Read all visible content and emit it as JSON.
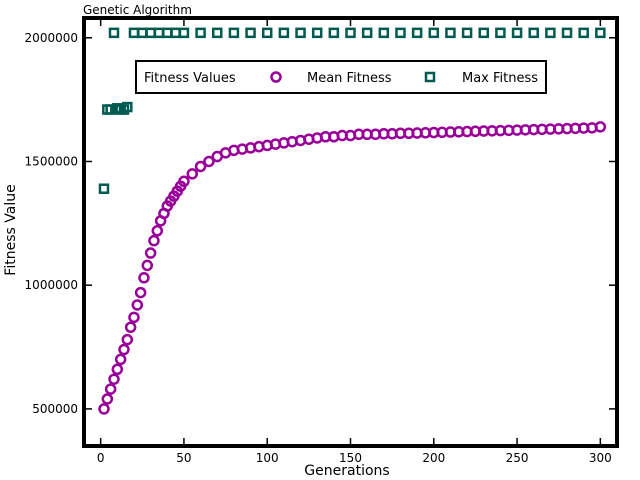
{
  "chart_data": {
    "type": "scatter",
    "title": "Genetic Algorithm",
    "xlabel": "Generations",
    "ylabel": "Fitness Value",
    "xlim": [
      -10,
      310
    ],
    "ylim": [
      350000,
      2080000
    ],
    "xticks": [
      0,
      50,
      100,
      150,
      200,
      250,
      300
    ],
    "yticks": [
      500000,
      1000000,
      1500000,
      2000000
    ],
    "xtick_labels": [
      "0",
      "50",
      "100",
      "150",
      "200",
      "250",
      "300"
    ],
    "ytick_labels": [
      "500000",
      "1000000",
      "1500000",
      "2000000"
    ],
    "grid": false,
    "legend": {
      "title": "Fitness Values",
      "placement": "top-center",
      "entries": [
        "Mean Fitness",
        "Max Fitness"
      ]
    },
    "colors": {
      "mean": "#990099",
      "max": "#005a50"
    },
    "series": [
      {
        "name": "Mean Fitness",
        "marker": "circle",
        "x": [
          2,
          4,
          6,
          8,
          10,
          12,
          14,
          16,
          18,
          20,
          22,
          24,
          26,
          28,
          30,
          32,
          34,
          36,
          38,
          40,
          42,
          44,
          46,
          48,
          50,
          55,
          60,
          65,
          70,
          75,
          80,
          85,
          90,
          95,
          100,
          105,
          110,
          115,
          120,
          125,
          130,
          135,
          140,
          145,
          150,
          155,
          160,
          165,
          170,
          175,
          180,
          185,
          190,
          195,
          200,
          205,
          210,
          215,
          220,
          225,
          230,
          235,
          240,
          245,
          250,
          255,
          260,
          265,
          270,
          275,
          280,
          285,
          290,
          295,
          300
        ],
        "values": [
          500000,
          540000,
          580000,
          620000,
          660000,
          700000,
          740000,
          780000,
          830000,
          870000,
          920000,
          970000,
          1030000,
          1080000,
          1130000,
          1180000,
          1220000,
          1260000,
          1290000,
          1320000,
          1340000,
          1360000,
          1380000,
          1400000,
          1420000,
          1450000,
          1480000,
          1500000,
          1520000,
          1535000,
          1545000,
          1550000,
          1555000,
          1560000,
          1565000,
          1570000,
          1575000,
          1580000,
          1585000,
          1590000,
          1595000,
          1600000,
          1600000,
          1605000,
          1605000,
          1610000,
          1610000,
          1610000,
          1612000,
          1612000,
          1614000,
          1614000,
          1615000,
          1616000,
          1617000,
          1618000,
          1619000,
          1620000,
          1621000,
          1622000,
          1623000,
          1624000,
          1625000,
          1626000,
          1627000,
          1628000,
          1629000,
          1630000,
          1631000,
          1632000,
          1633000,
          1634000,
          1635000,
          1636000,
          1640000
        ]
      },
      {
        "name": "Max Fitness",
        "marker": "square",
        "x": [
          2,
          4,
          6,
          8,
          10,
          12,
          14,
          16,
          20,
          25,
          30,
          35,
          40,
          45,
          50,
          60,
          70,
          80,
          90,
          100,
          110,
          120,
          130,
          140,
          150,
          160,
          170,
          180,
          190,
          200,
          210,
          220,
          230,
          240,
          250,
          260,
          270,
          280,
          290,
          300
        ],
        "values": [
          1390000,
          1710000,
          1710000,
          2020000,
          1715000,
          1710000,
          1710000,
          1720000,
          2020000,
          2020000,
          2020000,
          2020000,
          2020000,
          2020000,
          2020000,
          2020000,
          2020000,
          2020000,
          2020000,
          2020000,
          2020000,
          2020000,
          2020000,
          2020000,
          2020000,
          2020000,
          2020000,
          2020000,
          2020000,
          2020000,
          2020000,
          2020000,
          2020000,
          2020000,
          2020000,
          2020000,
          2020000,
          2020000,
          2020000,
          2020000
        ]
      }
    ]
  }
}
